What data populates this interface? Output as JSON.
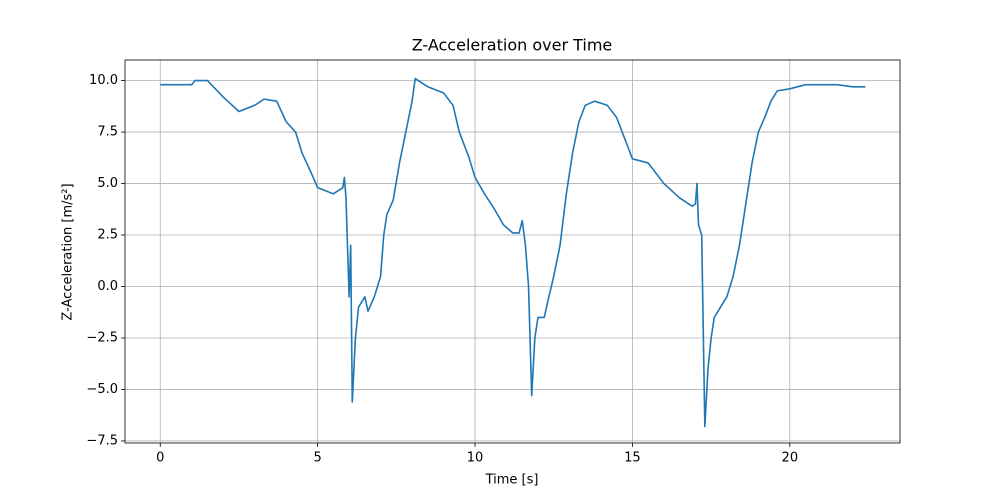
{
  "chart_data": {
    "type": "line",
    "title": "Z-Acceleration over Time",
    "xlabel": "Time [s]",
    "ylabel": "Z-Acceleration [m/s²]",
    "x": [
      0,
      0.5,
      1.0,
      1.1,
      1.5,
      2.0,
      2.5,
      3.0,
      3.3,
      3.7,
      4.0,
      4.3,
      4.5,
      4.8,
      5.0,
      5.5,
      5.8,
      5.85,
      5.9,
      6.0,
      6.05,
      6.1,
      6.2,
      6.3,
      6.5,
      6.6,
      6.8,
      7.0,
      7.1,
      7.2,
      7.4,
      7.6,
      7.8,
      8.0,
      8.1,
      8.5,
      9.0,
      9.3,
      9.5,
      9.8,
      10.0,
      10.3,
      10.6,
      10.9,
      11.2,
      11.4,
      11.5,
      11.6,
      11.7,
      11.8,
      11.9,
      12.0,
      12.2,
      12.3,
      12.5,
      12.7,
      12.9,
      13.1,
      13.3,
      13.5,
      13.8,
      14.2,
      14.5,
      14.8,
      15.0,
      15.5,
      16.0,
      16.5,
      16.9,
      17.0,
      17.05,
      17.1,
      17.2,
      17.3,
      17.4,
      17.5,
      17.6,
      17.8,
      18.0,
      18.2,
      18.4,
      18.6,
      18.8,
      19.0,
      19.2,
      19.4,
      19.6,
      20.0,
      20.5,
      21.0,
      21.5,
      22.0,
      22.4
    ],
    "series": [
      {
        "name": "Z-Acceleration",
        "color": "#1f77b4",
        "values": [
          9.8,
          9.8,
          9.8,
          10.0,
          10.0,
          9.2,
          8.5,
          8.8,
          9.1,
          9.0,
          8.0,
          7.5,
          6.5,
          5.5,
          4.8,
          4.5,
          4.8,
          5.3,
          4.3,
          -0.5,
          2.0,
          -5.6,
          -2.5,
          -1.0,
          -0.5,
          -1.2,
          -0.5,
          0.5,
          2.5,
          3.5,
          4.2,
          6.0,
          7.5,
          9.0,
          10.1,
          9.7,
          9.4,
          8.8,
          7.5,
          6.3,
          5.3,
          4.5,
          3.8,
          3.0,
          2.6,
          2.6,
          3.2,
          2.0,
          0,
          -5.3,
          -2.5,
          -1.5,
          -1.5,
          -0.8,
          0.5,
          2.0,
          4.5,
          6.5,
          8.0,
          8.8,
          9.0,
          8.8,
          8.2,
          7.0,
          6.2,
          6.0,
          5.0,
          4.3,
          3.9,
          4.0,
          5.0,
          3.0,
          2.5,
          -6.8,
          -4.0,
          -2.5,
          -1.5,
          -1.0,
          -0.5,
          0.5,
          2.0,
          4.0,
          6.0,
          7.5,
          8.2,
          9.0,
          9.5,
          9.6,
          9.8,
          9.8,
          9.8,
          9.7,
          9.7
        ]
      }
    ],
    "xlim": [
      -1.12,
      23.5
    ],
    "ylim": [
      -7.6,
      11.0
    ],
    "xticks": [
      0,
      5,
      10,
      15,
      20
    ],
    "yticks": [
      {
        "value": -7.5,
        "label": "−7.5"
      },
      {
        "value": -5.0,
        "label": "−5.0"
      },
      {
        "value": -2.5,
        "label": "−2.5"
      },
      {
        "value": 0,
        "label": "0.0"
      },
      2.5,
      {
        "value": 5.0,
        "label": "5.0"
      },
      7.5,
      {
        "value": 10.0,
        "label": "10.0"
      }
    ],
    "grid": true
  }
}
